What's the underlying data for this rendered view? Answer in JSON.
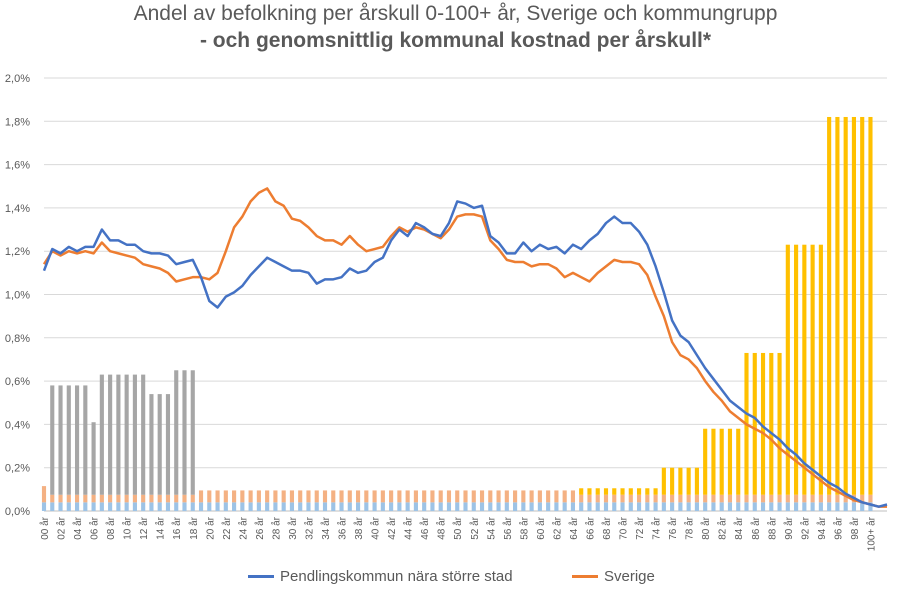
{
  "title": "Andel av befolkning per årskull 0-100+ år, Sverige och kommungrupp",
  "subtitle": "- och genomsnittlig kommunal kostnad per årskull*",
  "legend": {
    "series1": "Pendlingskommun nära större stad",
    "series2": "Sverige"
  },
  "colors": {
    "series1": "#4472C4",
    "series2": "#ED7D31",
    "grid": "#D9D9D9",
    "bar_grey": "#A6A6A6",
    "bar_gold": "#FFC000",
    "bar_orange": "#F4B183",
    "bar_blue": "#9DC3E6"
  },
  "chart_data": {
    "type": "line",
    "ylim": [
      0,
      2.0
    ],
    "yticks": [
      "0,0%",
      "0,2%",
      "0,4%",
      "0,6%",
      "0,8%",
      "1,0%",
      "1,2%",
      "1,4%",
      "1,6%",
      "1,8%",
      "2,0%"
    ],
    "xtick_labels": [
      "00 år",
      "02 år",
      "04 år",
      "06 år",
      "08 år",
      "10 år",
      "12 år",
      "14 år",
      "16 år",
      "18 år",
      "20 år",
      "22 år",
      "24 år",
      "26 år",
      "28 år",
      "30 år",
      "32 år",
      "34 år",
      "36 år",
      "38 år",
      "40 år",
      "42 år",
      "44 år",
      "46 år",
      "48 år",
      "50 år",
      "52 år",
      "54 år",
      "56 år",
      "58 år",
      "60 år",
      "62 år",
      "64 år",
      "66 år",
      "68 år",
      "70 år",
      "72 år",
      "74 år",
      "76 år",
      "78 år",
      "80 år",
      "82 år",
      "84 år",
      "86 år",
      "88 år",
      "90 år",
      "92 år",
      "94 år",
      "96 år",
      "98 år",
      "100+ år"
    ],
    "series": [
      {
        "name": "Pendlingskommun nära större stad",
        "values": [
          1.11,
          1.21,
          1.19,
          1.22,
          1.2,
          1.22,
          1.22,
          1.3,
          1.25,
          1.25,
          1.23,
          1.23,
          1.2,
          1.19,
          1.19,
          1.18,
          1.14,
          1.15,
          1.16,
          1.08,
          0.97,
          0.94,
          0.99,
          1.01,
          1.04,
          1.09,
          1.13,
          1.17,
          1.15,
          1.13,
          1.11,
          1.11,
          1.1,
          1.05,
          1.07,
          1.07,
          1.08,
          1.12,
          1.1,
          1.11,
          1.15,
          1.17,
          1.25,
          1.3,
          1.27,
          1.33,
          1.31,
          1.28,
          1.27,
          1.33,
          1.43,
          1.42,
          1.4,
          1.41,
          1.27,
          1.24,
          1.19,
          1.19,
          1.24,
          1.2,
          1.23,
          1.21,
          1.22,
          1.19,
          1.23,
          1.21,
          1.25,
          1.28,
          1.33,
          1.36,
          1.33,
          1.33,
          1.29,
          1.23,
          1.13,
          1.01,
          0.88,
          0.81,
          0.78,
          0.72,
          0.66,
          0.61,
          0.56,
          0.51,
          0.48,
          0.45,
          0.43,
          0.39,
          0.36,
          0.33,
          0.29,
          0.26,
          0.22,
          0.19,
          0.16,
          0.13,
          0.11,
          0.08,
          0.06,
          0.04,
          0.03,
          0.02,
          0.03
        ]
      },
      {
        "name": "Sverige",
        "values": [
          1.14,
          1.2,
          1.18,
          1.2,
          1.19,
          1.2,
          1.19,
          1.24,
          1.2,
          1.19,
          1.18,
          1.17,
          1.14,
          1.13,
          1.12,
          1.1,
          1.06,
          1.07,
          1.08,
          1.08,
          1.07,
          1.1,
          1.2,
          1.31,
          1.36,
          1.43,
          1.47,
          1.49,
          1.43,
          1.41,
          1.35,
          1.34,
          1.31,
          1.27,
          1.25,
          1.25,
          1.23,
          1.27,
          1.23,
          1.2,
          1.21,
          1.22,
          1.27,
          1.31,
          1.29,
          1.31,
          1.3,
          1.28,
          1.26,
          1.3,
          1.36,
          1.37,
          1.37,
          1.36,
          1.25,
          1.21,
          1.16,
          1.15,
          1.15,
          1.13,
          1.14,
          1.14,
          1.12,
          1.08,
          1.1,
          1.08,
          1.06,
          1.1,
          1.13,
          1.16,
          1.15,
          1.15,
          1.14,
          1.09,
          0.99,
          0.9,
          0.78,
          0.72,
          0.7,
          0.66,
          0.6,
          0.55,
          0.51,
          0.46,
          0.43,
          0.4,
          0.38,
          0.36,
          0.33,
          0.29,
          0.26,
          0.23,
          0.2,
          0.17,
          0.14,
          0.11,
          0.09,
          0.07,
          0.05,
          0.04,
          0.03,
          0.02,
          0.02
        ]
      }
    ],
    "cost_bars": {
      "segment_values": {
        "blue": 0.04,
        "orange": 0.075
      },
      "groups": [
        {
          "from": 0,
          "to": 0,
          "color": "orange",
          "top": 0.115
        },
        {
          "from": 1,
          "to": 5,
          "color": "grey",
          "top": 0.58
        },
        {
          "from": 6,
          "to": 6,
          "color": "grey",
          "top": 0.41
        },
        {
          "from": 7,
          "to": 12,
          "color": "grey",
          "top": 0.63
        },
        {
          "from": 13,
          "to": 15,
          "color": "grey",
          "top": 0.54
        },
        {
          "from": 16,
          "to": 18,
          "color": "grey",
          "top": 0.65
        },
        {
          "from": 19,
          "to": 64,
          "color": "orange",
          "top": 0.095
        },
        {
          "from": 65,
          "to": 74,
          "color": "gold",
          "top": 0.105
        },
        {
          "from": 75,
          "to": 79,
          "color": "gold",
          "top": 0.2
        },
        {
          "from": 80,
          "to": 84,
          "color": "gold",
          "top": 0.38
        },
        {
          "from": 85,
          "to": 89,
          "color": "gold",
          "top": 0.73
        },
        {
          "from": 90,
          "to": 94,
          "color": "gold",
          "top": 1.23
        },
        {
          "from": 95,
          "to": 100,
          "color": "gold",
          "top": 1.82
        }
      ]
    }
  }
}
